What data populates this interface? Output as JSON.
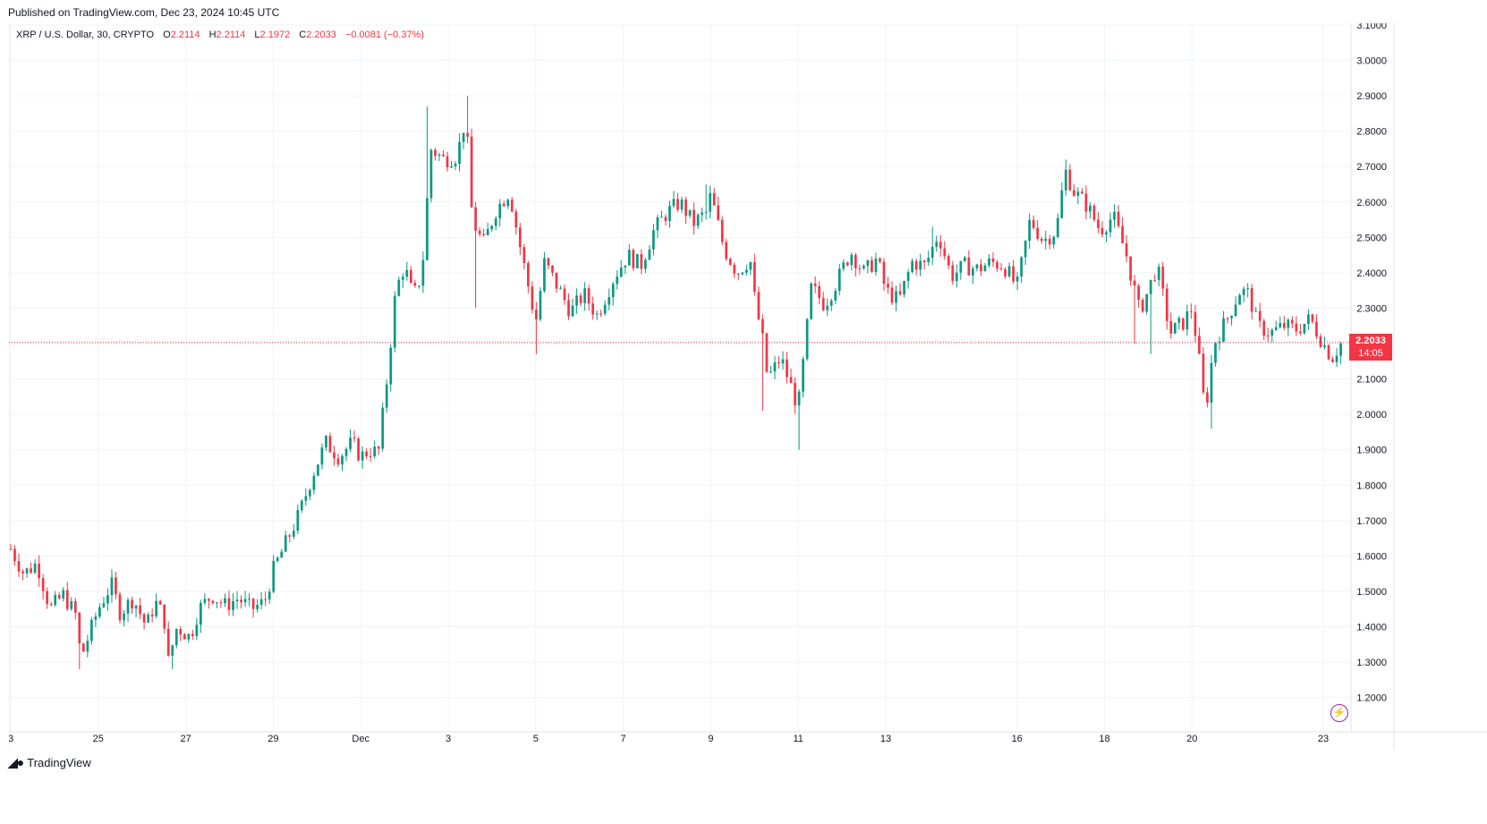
{
  "header": {
    "published": "Published on TradingView.com, Dec 23, 2024 10:45 UTC"
  },
  "legend": {
    "symbol": "XRP / U.S. Dollar, 30, CRYPTO",
    "o_label": "O",
    "o_value": "2.2114",
    "h_label": "H",
    "h_value": "2.2114",
    "l_label": "L",
    "l_value": "2.1972",
    "c_label": "C",
    "c_value": "2.2033",
    "change": "−0.0081 (−0.37%)"
  },
  "price_tag": {
    "value": "2.2033",
    "countdown": "14:05"
  },
  "footer": {
    "brand": "TradingView",
    "brand_icon": "tradingview-logo-icon"
  },
  "colors": {
    "up": "#089981",
    "down": "#f23645",
    "grid": "#f0f3fa",
    "axis_text": "#131722"
  },
  "chart_data": {
    "type": "candlestick",
    "title": "XRP / U.S. Dollar, 30, CRYPTO",
    "grid": true,
    "ylim": [
      1.1,
      3.1
    ],
    "y_ticks": [
      "1.2000",
      "1.3000",
      "1.4000",
      "1.5000",
      "1.6000",
      "1.7000",
      "1.8000",
      "1.9000",
      "2.0000",
      "2.1000",
      "2.2000",
      "2.3000",
      "2.4000",
      "2.5000",
      "2.6000",
      "2.7000",
      "2.8000",
      "2.9000",
      "3.0000",
      "3.1000"
    ],
    "x_ticks": [
      {
        "label": "3",
        "day": 0
      },
      {
        "label": "25",
        "day": 2
      },
      {
        "label": "27",
        "day": 4
      },
      {
        "label": "29",
        "day": 6
      },
      {
        "label": "Dec",
        "day": 8
      },
      {
        "label": "3",
        "day": 10
      },
      {
        "label": "5",
        "day": 12
      },
      {
        "label": "7",
        "day": 14
      },
      {
        "label": "9",
        "day": 16
      },
      {
        "label": "11",
        "day": 18
      },
      {
        "label": "13",
        "day": 20
      },
      {
        "label": "16",
        "day": 23
      },
      {
        "label": "18",
        "day": 25
      },
      {
        "label": "20",
        "day": 27
      },
      {
        "label": "23",
        "day": 30
      }
    ],
    "last_price": 2.2033,
    "price_path": [
      [
        0.0,
        1.62
      ],
      [
        0.3,
        1.55
      ],
      [
        0.6,
        1.58
      ],
      [
        0.9,
        1.45
      ],
      [
        1.2,
        1.49
      ],
      [
        1.5,
        1.43
      ],
      [
        1.6,
        1.31
      ],
      [
        1.8,
        1.38
      ],
      [
        2.0,
        1.45
      ],
      [
        2.3,
        1.52
      ],
      [
        2.5,
        1.44
      ],
      [
        2.8,
        1.48
      ],
      [
        3.1,
        1.4
      ],
      [
        3.3,
        1.47
      ],
      [
        3.5,
        1.43
      ],
      [
        3.6,
        1.3
      ],
      [
        3.8,
        1.4
      ],
      [
        4.1,
        1.37
      ],
      [
        4.3,
        1.45
      ],
      [
        4.6,
        1.49
      ],
      [
        4.9,
        1.46
      ],
      [
        5.2,
        1.48
      ],
      [
        5.5,
        1.45
      ],
      [
        5.8,
        1.47
      ],
      [
        6.0,
        1.56
      ],
      [
        6.3,
        1.64
      ],
      [
        6.6,
        1.72
      ],
      [
        6.9,
        1.83
      ],
      [
        7.2,
        1.92
      ],
      [
        7.5,
        1.88
      ],
      [
        7.8,
        1.92
      ],
      [
        8.0,
        1.88
      ],
      [
        8.2,
        1.9
      ],
      [
        8.4,
        1.89
      ],
      [
        8.6,
        2.1
      ],
      [
        8.8,
        2.35
      ],
      [
        9.0,
        2.42
      ],
      [
        9.2,
        2.33
      ],
      [
        9.4,
        2.4
      ],
      [
        9.6,
        2.75
      ],
      [
        9.9,
        2.72
      ],
      [
        10.2,
        2.73
      ],
      [
        10.4,
        2.84
      ],
      [
        10.55,
        2.55
      ],
      [
        10.8,
        2.48
      ],
      [
        11.1,
        2.58
      ],
      [
        11.4,
        2.63
      ],
      [
        11.6,
        2.5
      ],
      [
        11.8,
        2.38
      ],
      [
        12.0,
        2.26
      ],
      [
        12.2,
        2.43
      ],
      [
        12.5,
        2.36
      ],
      [
        12.8,
        2.29
      ],
      [
        13.1,
        2.34
      ],
      [
        13.4,
        2.28
      ],
      [
        13.8,
        2.39
      ],
      [
        14.1,
        2.45
      ],
      [
        14.4,
        2.42
      ],
      [
        14.7,
        2.52
      ],
      [
        15.0,
        2.57
      ],
      [
        15.3,
        2.6
      ],
      [
        15.6,
        2.54
      ],
      [
        15.9,
        2.57
      ],
      [
        16.0,
        2.62
      ],
      [
        16.3,
        2.47
      ],
      [
        16.6,
        2.4
      ],
      [
        16.9,
        2.44
      ],
      [
        17.0,
        2.33
      ],
      [
        17.2,
        2.2
      ],
      [
        17.3,
        2.1
      ],
      [
        17.6,
        2.16
      ],
      [
        17.8,
        2.09
      ],
      [
        18.0,
        2.02
      ],
      [
        18.1,
        2.13
      ],
      [
        18.3,
        2.36
      ],
      [
        18.6,
        2.31
      ],
      [
        18.9,
        2.38
      ],
      [
        19.2,
        2.46
      ],
      [
        19.5,
        2.4
      ],
      [
        19.8,
        2.44
      ],
      [
        20.0,
        2.35
      ],
      [
        20.3,
        2.32
      ],
      [
        20.6,
        2.43
      ],
      [
        20.9,
        2.42
      ],
      [
        21.2,
        2.51
      ],
      [
        21.5,
        2.39
      ],
      [
        21.8,
        2.42
      ],
      [
        22.1,
        2.41
      ],
      [
        22.4,
        2.43
      ],
      [
        22.7,
        2.42
      ],
      [
        23.0,
        2.36
      ],
      [
        23.3,
        2.55
      ],
      [
        23.6,
        2.49
      ],
      [
        23.9,
        2.52
      ],
      [
        24.1,
        2.69
      ],
      [
        24.3,
        2.63
      ],
      [
        24.6,
        2.59
      ],
      [
        24.9,
        2.52
      ],
      [
        25.2,
        2.56
      ],
      [
        25.5,
        2.45
      ],
      [
        25.8,
        2.29
      ],
      [
        26.0,
        2.35
      ],
      [
        26.2,
        2.42
      ],
      [
        26.5,
        2.23
      ],
      [
        26.8,
        2.26
      ],
      [
        27.0,
        2.3
      ],
      [
        27.2,
        2.12
      ],
      [
        27.3,
        2.0
      ],
      [
        27.5,
        2.2
      ],
      [
        27.8,
        2.27
      ],
      [
        28.1,
        2.35
      ],
      [
        28.3,
        2.34
      ],
      [
        28.5,
        2.25
      ],
      [
        28.8,
        2.23
      ],
      [
        29.1,
        2.25
      ],
      [
        29.4,
        2.24
      ],
      [
        29.7,
        2.27
      ],
      [
        30.0,
        2.2
      ],
      [
        30.2,
        2.16
      ],
      [
        30.4,
        2.2
      ]
    ],
    "spikes": [
      [
        10.45,
        2.9
      ],
      [
        10.6,
        2.3
      ],
      [
        9.5,
        2.87
      ],
      [
        17.2,
        2.01
      ],
      [
        18.0,
        1.9
      ],
      [
        26.1,
        2.17
      ],
      [
        27.4,
        1.96
      ],
      [
        24.1,
        2.72
      ],
      [
        12.05,
        2.17
      ],
      [
        1.6,
        1.28
      ],
      [
        3.65,
        1.28
      ],
      [
        15.9,
        2.65
      ],
      [
        21.1,
        2.53
      ],
      [
        25.7,
        2.2
      ]
    ],
    "candle_count": 330,
    "seed": 7
  }
}
